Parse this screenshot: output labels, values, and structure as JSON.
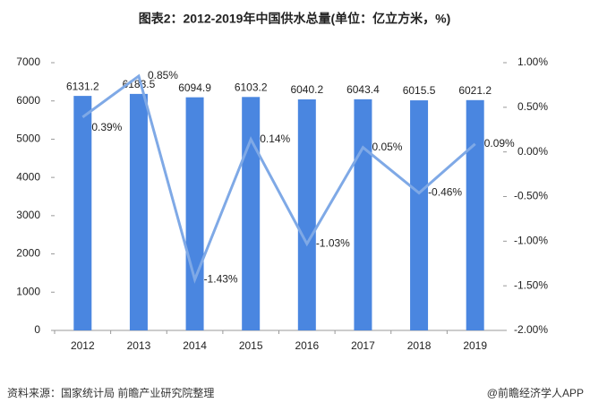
{
  "chart_data": {
    "type": "bar-line",
    "title": "图表2：2012-2019年中国供水总量(单位：亿立方米，%)",
    "categories": [
      "2012",
      "2013",
      "2014",
      "2015",
      "2016",
      "2017",
      "2018",
      "2019"
    ],
    "series": [
      {
        "type": "bar",
        "color": "#4a86e0",
        "values": [
          6131.2,
          6183.5,
          6094.9,
          6103.2,
          6040.2,
          6043.4,
          6015.5,
          6021.2
        ]
      },
      {
        "type": "line",
        "axis": "y2",
        "color": "#7fa9e6",
        "values": [
          0.39,
          0.85,
          -1.43,
          0.14,
          -1.03,
          0.05,
          -0.46,
          0.09
        ],
        "value_labels": [
          "0.39%",
          "0.85%",
          "-1.43%",
          "0.14%",
          "-1.03%",
          "0.05%",
          "-0.46%",
          "0.09%"
        ]
      }
    ],
    "ylim": [
      0,
      7000
    ],
    "yticks": [
      0,
      1000,
      2000,
      3000,
      4000,
      5000,
      6000,
      7000
    ],
    "y2lim": [
      -2,
      1
    ],
    "y2ticks": [
      {
        "value": -2,
        "label": "-2.00%"
      },
      {
        "value": -1.5,
        "label": "-1.50%"
      },
      {
        "value": -1,
        "label": "-1.00%"
      },
      {
        "value": -0.5,
        "label": "-0.50%"
      },
      {
        "value": 0,
        "label": "0.00%"
      },
      {
        "value": 0.5,
        "label": "0.50%"
      },
      {
        "value": 1,
        "label": "1.00%"
      }
    ],
    "source": "资料来源：国家统计局 前瞻产业研究院整理",
    "brand": "@前瞻经济学人APP"
  }
}
